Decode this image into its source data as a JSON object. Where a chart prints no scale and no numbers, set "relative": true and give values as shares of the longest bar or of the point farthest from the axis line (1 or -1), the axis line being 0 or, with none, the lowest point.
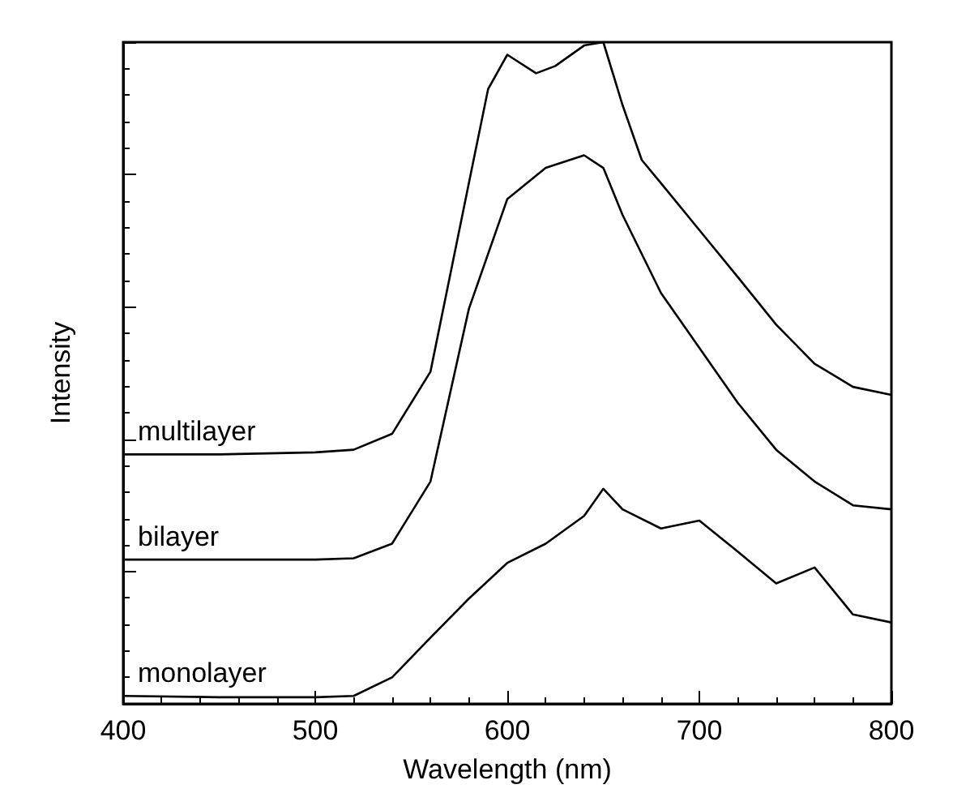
{
  "chart_data": {
    "type": "line",
    "xlabel": "Wavelength (nm)",
    "ylabel": "Intensity",
    "relative": true,
    "xlim": [
      400,
      800
    ],
    "xticks": [
      400,
      500,
      600,
      700,
      800
    ],
    "grid": false,
    "legend": "left",
    "marker": "none",
    "line_style": "solid",
    "series": [
      {
        "name": "multilayer",
        "color": "#000000",
        "x": [
          400,
          450,
          500,
          520,
          540,
          560,
          580,
          590,
          600,
          615,
          625,
          640,
          650,
          660,
          670,
          680,
          700,
          720,
          740,
          760,
          780,
          800
        ],
        "values": [
          0.377,
          0.377,
          0.38,
          0.384,
          0.408,
          0.502,
          0.787,
          0.929,
          0.981,
          0.953,
          0.964,
          0.995,
          1,
          0.905,
          0.822,
          0.787,
          0.716,
          0.645,
          0.573,
          0.514,
          0.479,
          0.467
        ]
      },
      {
        "name": "bilayer",
        "color": "#000000",
        "x": [
          400,
          450,
          500,
          520,
          540,
          560,
          580,
          600,
          620,
          640,
          650,
          660,
          680,
          700,
          720,
          740,
          760,
          780,
          800
        ],
        "values": [
          0.218,
          0.218,
          0.218,
          0.22,
          0.242,
          0.336,
          0.597,
          0.763,
          0.81,
          0.829,
          0.81,
          0.739,
          0.621,
          0.538,
          0.455,
          0.384,
          0.336,
          0.3,
          0.294
        ]
      },
      {
        "name": "monolayer",
        "color": "#000000",
        "x": [
          400,
          450,
          500,
          520,
          540,
          560,
          580,
          600,
          620,
          640,
          650,
          660,
          680,
          700,
          720,
          740,
          760,
          780,
          800
        ],
        "values": [
          0.012,
          0.01,
          0.01,
          0.012,
          0.04,
          0.1,
          0.159,
          0.213,
          0.242,
          0.284,
          0.325,
          0.294,
          0.265,
          0.277,
          0.23,
          0.182,
          0.206,
          0.135,
          0.123
        ]
      }
    ]
  }
}
